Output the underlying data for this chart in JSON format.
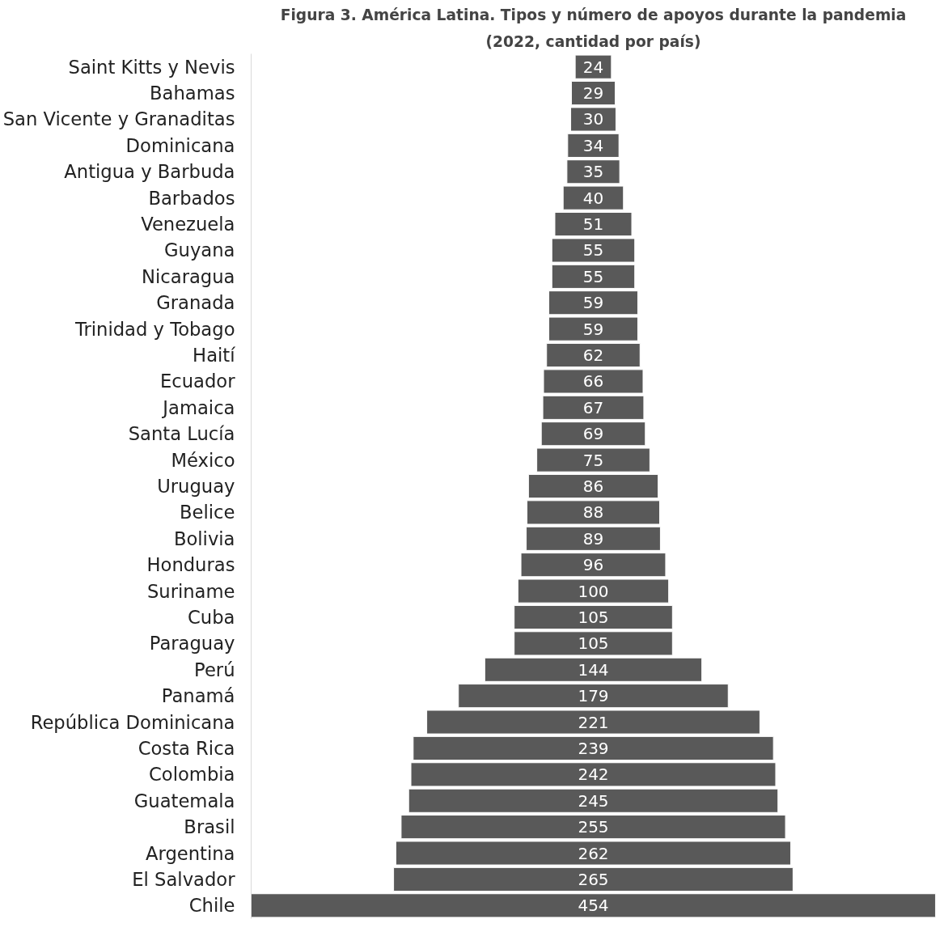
{
  "chart_data": {
    "type": "other",
    "title": "Figura 3. América Latina. Tipos y número de apoyos durante la pandemia",
    "subtitle": "(2022, cantidad por país)",
    "categories": [
      "Saint Kitts y Nevis",
      "Bahamas",
      "San Vicente y Granaditas",
      "Dominicana",
      "Antigua y Barbuda",
      "Barbados",
      "Venezuela",
      "Guyana",
      "Nicaragua",
      "Granada",
      "Trinidad y Tobago",
      "Haití",
      "Ecuador",
      "Jamaica",
      "Santa Lucía",
      "México",
      "Uruguay",
      "Belice",
      "Bolivia",
      "Honduras",
      "Suriname",
      "Cuba",
      "Paraguay",
      "Perú",
      "Panamá",
      "República Dominicana",
      "Costa Rica",
      "Colombia",
      "Guatemala",
      "Brasil",
      "Argentina",
      "El Salvador",
      "Chile"
    ],
    "values": [
      24,
      29,
      30,
      34,
      35,
      40,
      51,
      55,
      55,
      59,
      59,
      62,
      66,
      67,
      69,
      75,
      86,
      88,
      89,
      96,
      100,
      105,
      105,
      144,
      179,
      221,
      239,
      242,
      245,
      255,
      262,
      265,
      454
    ],
    "color": "#595959",
    "data_labels": true
  }
}
